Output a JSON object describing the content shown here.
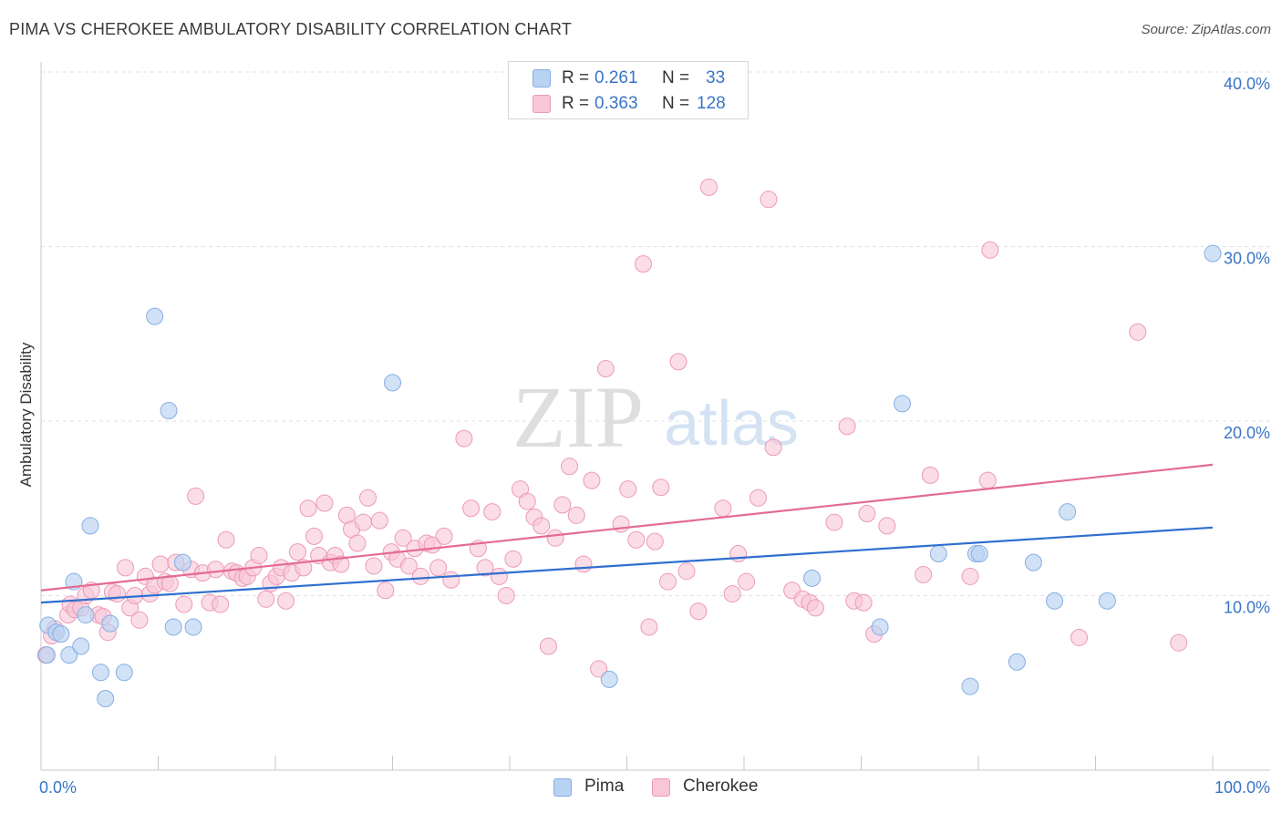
{
  "header": {
    "title": "PIMA VS CHEROKEE AMBULATORY DISABILITY CORRELATION CHART",
    "source": "Source: ZipAtlas.com"
  },
  "watermark": {
    "zip": "ZIP",
    "atlas": "atlas"
  },
  "legend": {
    "items": [
      {
        "r_label": "R =",
        "r_value": "0.261",
        "n_label": "N =",
        "n_value": "33",
        "color": "#a9c8f0",
        "border": "#7fa8e0"
      },
      {
        "r_label": "R =",
        "r_value": "0.363",
        "n_label": "N =",
        "n_value": "128",
        "color": "#f8bfd2",
        "border": "#ee93b2"
      }
    ]
  },
  "bottom_legend": {
    "pima": "Pima",
    "cherokee": "Cherokee"
  },
  "colors": {
    "pima_fill": "#b8d2f2",
    "pima_stroke": "#86aee3",
    "pima_line": "#2f6fcf",
    "cherokee_fill": "#f9c6d7",
    "cherokee_stroke": "#eb9ab7",
    "cherokee_line": "#e46a96",
    "tick_label": "#3a74c6",
    "grid": "#e2e2e2"
  },
  "chart_data": {
    "type": "scatter",
    "title": "PIMA VS CHEROKEE AMBULATORY DISABILITY CORRELATION CHART",
    "xlabel": "",
    "ylabel": "Ambulatory Disability",
    "xlim": [
      0,
      100
    ],
    "ylim": [
      0,
      40
    ],
    "x_tick_labels": [
      "0.0%",
      "100.0%"
    ],
    "y_ticks": [
      10,
      20,
      30,
      40
    ],
    "y_tick_labels": [
      "10.0%",
      "20.0%",
      "30.0%",
      "40.0%"
    ],
    "grid": true,
    "legend_position": "top-center",
    "series": [
      {
        "name": "Pima",
        "r": 0.261,
        "n": 33,
        "trend": {
          "x": [
            0,
            100
          ],
          "y": [
            9.6,
            13.9
          ]
        },
        "points": [
          [
            0.5,
            6.6
          ],
          [
            0.6,
            8.3
          ],
          [
            1.3,
            7.9
          ],
          [
            1.7,
            7.8
          ],
          [
            2.4,
            6.6
          ],
          [
            2.8,
            10.8
          ],
          [
            3.4,
            7.1
          ],
          [
            3.8,
            8.9
          ],
          [
            4.2,
            14.0
          ],
          [
            5.1,
            5.6
          ],
          [
            5.5,
            4.1
          ],
          [
            5.9,
            8.4
          ],
          [
            7.1,
            5.6
          ],
          [
            9.7,
            26.0
          ],
          [
            10.9,
            20.6
          ],
          [
            11.3,
            8.2
          ],
          [
            12.1,
            11.9
          ],
          [
            13.0,
            8.2
          ],
          [
            30.0,
            22.2
          ],
          [
            48.5,
            5.2
          ],
          [
            65.8,
            11.0
          ],
          [
            71.6,
            8.2
          ],
          [
            73.5,
            21.0
          ],
          [
            76.6,
            12.4
          ],
          [
            79.3,
            4.8
          ],
          [
            79.8,
            12.4
          ],
          [
            80.1,
            12.4
          ],
          [
            83.3,
            6.2
          ],
          [
            84.7,
            11.9
          ],
          [
            86.5,
            9.7
          ],
          [
            87.6,
            14.8
          ],
          [
            91.0,
            9.7
          ],
          [
            100.0,
            29.6
          ]
        ]
      },
      {
        "name": "Cherokee",
        "r": 0.363,
        "n": 128,
        "trend": {
          "x": [
            0,
            100
          ],
          "y": [
            10.3,
            17.5
          ]
        },
        "points": [
          [
            0.4,
            6.6
          ],
          [
            1.2,
            8.1
          ],
          [
            2.3,
            8.9
          ],
          [
            2.5,
            9.5
          ],
          [
            2.9,
            9.2
          ],
          [
            3.4,
            9.3
          ],
          [
            3.8,
            10.0
          ],
          [
            4.3,
            10.3
          ],
          [
            4.9,
            8.9
          ],
          [
            5.3,
            8.8
          ],
          [
            5.7,
            7.9
          ],
          [
            6.1,
            10.2
          ],
          [
            6.5,
            10.1
          ],
          [
            7.2,
            11.6
          ],
          [
            7.6,
            9.3
          ],
          [
            8.0,
            10.0
          ],
          [
            8.4,
            8.6
          ],
          [
            8.9,
            11.1
          ],
          [
            9.3,
            10.1
          ],
          [
            9.7,
            10.6
          ],
          [
            10.2,
            11.8
          ],
          [
            10.6,
            10.8
          ],
          [
            11.0,
            10.7
          ],
          [
            11.5,
            11.9
          ],
          [
            12.2,
            9.5
          ],
          [
            12.8,
            11.5
          ],
          [
            13.2,
            15.7
          ],
          [
            13.8,
            11.3
          ],
          [
            14.4,
            9.6
          ],
          [
            14.9,
            11.5
          ],
          [
            15.3,
            9.5
          ],
          [
            15.8,
            13.2
          ],
          [
            16.3,
            11.4
          ],
          [
            16.7,
            11.3
          ],
          [
            17.2,
            11.0
          ],
          [
            17.6,
            11.1
          ],
          [
            18.1,
            11.6
          ],
          [
            18.6,
            12.3
          ],
          [
            19.2,
            9.8
          ],
          [
            19.6,
            10.7
          ],
          [
            20.1,
            11.1
          ],
          [
            20.5,
            11.6
          ],
          [
            20.9,
            9.7
          ],
          [
            21.4,
            11.3
          ],
          [
            21.9,
            12.5
          ],
          [
            22.4,
            11.6
          ],
          [
            22.8,
            15.0
          ],
          [
            23.3,
            13.4
          ],
          [
            23.7,
            12.3
          ],
          [
            24.2,
            15.3
          ],
          [
            24.7,
            11.9
          ],
          [
            25.1,
            12.3
          ],
          [
            25.6,
            11.8
          ],
          [
            26.1,
            14.6
          ],
          [
            26.5,
            13.8
          ],
          [
            27.0,
            13.0
          ],
          [
            27.5,
            14.2
          ],
          [
            27.9,
            15.6
          ],
          [
            28.4,
            11.7
          ],
          [
            28.9,
            14.3
          ],
          [
            29.4,
            10.3
          ],
          [
            29.9,
            12.5
          ],
          [
            30.4,
            12.1
          ],
          [
            30.9,
            13.3
          ],
          [
            31.4,
            11.7
          ],
          [
            31.9,
            12.7
          ],
          [
            32.4,
            11.1
          ],
          [
            32.9,
            13.0
          ],
          [
            33.4,
            12.9
          ],
          [
            33.9,
            11.6
          ],
          [
            34.4,
            13.4
          ],
          [
            35.0,
            10.9
          ],
          [
            36.1,
            19.0
          ],
          [
            36.7,
            15.0
          ],
          [
            37.3,
            12.7
          ],
          [
            37.9,
            11.6
          ],
          [
            38.5,
            14.8
          ],
          [
            39.1,
            11.1
          ],
          [
            39.7,
            10.0
          ],
          [
            40.3,
            12.1
          ],
          [
            40.9,
            16.1
          ],
          [
            41.5,
            15.4
          ],
          [
            42.1,
            14.5
          ],
          [
            42.7,
            14.0
          ],
          [
            43.3,
            7.1
          ],
          [
            43.9,
            13.3
          ],
          [
            44.5,
            15.2
          ],
          [
            45.1,
            17.4
          ],
          [
            45.7,
            14.6
          ],
          [
            46.3,
            11.8
          ],
          [
            47.0,
            16.6
          ],
          [
            47.6,
            5.8
          ],
          [
            48.2,
            23.0
          ],
          [
            49.5,
            14.1
          ],
          [
            50.1,
            16.1
          ],
          [
            50.8,
            13.2
          ],
          [
            51.4,
            29.0
          ],
          [
            51.9,
            8.2
          ],
          [
            52.4,
            13.1
          ],
          [
            52.9,
            16.2
          ],
          [
            53.5,
            10.8
          ],
          [
            54.4,
            23.4
          ],
          [
            55.1,
            11.4
          ],
          [
            56.1,
            9.1
          ],
          [
            57.0,
            33.4
          ],
          [
            58.2,
            15.0
          ],
          [
            59.0,
            10.1
          ],
          [
            59.5,
            12.4
          ],
          [
            60.2,
            10.8
          ],
          [
            61.2,
            15.6
          ],
          [
            62.1,
            32.7
          ],
          [
            62.5,
            18.5
          ],
          [
            64.1,
            10.3
          ],
          [
            65.0,
            9.8
          ],
          [
            65.6,
            9.6
          ],
          [
            66.1,
            9.3
          ],
          [
            67.7,
            14.2
          ],
          [
            68.8,
            19.7
          ],
          [
            69.4,
            9.7
          ],
          [
            70.2,
            9.6
          ],
          [
            70.5,
            14.7
          ],
          [
            71.1,
            7.8
          ],
          [
            72.2,
            14.0
          ],
          [
            75.3,
            11.2
          ],
          [
            75.9,
            16.9
          ],
          [
            79.3,
            11.1
          ],
          [
            80.8,
            16.6
          ],
          [
            81.0,
            29.8
          ],
          [
            88.6,
            7.6
          ],
          [
            93.6,
            25.1
          ],
          [
            97.1,
            7.3
          ],
          [
            0.9,
            7.7
          ]
        ]
      }
    ]
  }
}
